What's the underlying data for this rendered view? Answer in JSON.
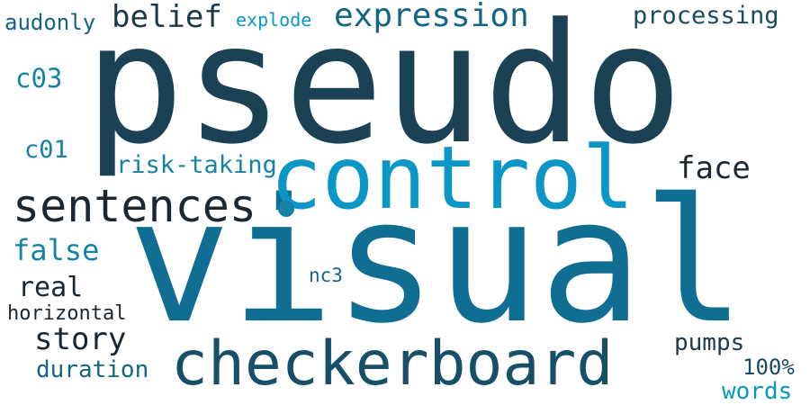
{
  "words": [
    {
      "key": "pseudo",
      "text": "pseudo",
      "color": "#1b4154"
    },
    {
      "key": "visual",
      "text": "visual",
      "color": "#106e92"
    },
    {
      "key": "control",
      "text": "control",
      "color": "#0a96c6"
    },
    {
      "key": "checkerboard",
      "text": "checkerboard",
      "color": "#164f67"
    },
    {
      "key": "sentences",
      "text": "sentences",
      "color": "#1c2731"
    },
    {
      "key": "expression",
      "text": "expression",
      "color": "#136584"
    },
    {
      "key": "belief",
      "text": "belief",
      "color": "#1a3a4b"
    },
    {
      "key": "face",
      "text": "face",
      "color": "#1c2731"
    },
    {
      "key": "story",
      "text": "story",
      "color": "#1c2731"
    },
    {
      "key": "false",
      "text": "false",
      "color": "#1682a8"
    },
    {
      "key": "real",
      "text": "real",
      "color": "#1c2731"
    },
    {
      "key": "processing",
      "text": "processing",
      "color": "#1a4b60"
    },
    {
      "key": "risk",
      "text": "risk-taking",
      "color": "#1682a8"
    },
    {
      "key": "pumps",
      "text": "pumps",
      "color": "#1a3a4b"
    },
    {
      "key": "duration",
      "text": "duration",
      "color": "#136584"
    },
    {
      "key": "words",
      "text": "words",
      "color": "#0a96c6"
    },
    {
      "key": "c03",
      "text": "c03",
      "color": "#1682a8"
    },
    {
      "key": "c01",
      "text": "c01",
      "color": "#1682a8"
    },
    {
      "key": "pct",
      "text": "100%",
      "color": "#1a4b60"
    },
    {
      "key": "audonly",
      "text": "audonly",
      "color": "#136584"
    },
    {
      "key": "horizontal",
      "text": "horizontal",
      "color": "#1c2731"
    },
    {
      "key": "explode",
      "text": "explode",
      "color": "#0a96c6"
    },
    {
      "key": "nc3",
      "text": "nc3",
      "color": "#136584"
    }
  ],
  "dot_color": "#1682a8"
}
